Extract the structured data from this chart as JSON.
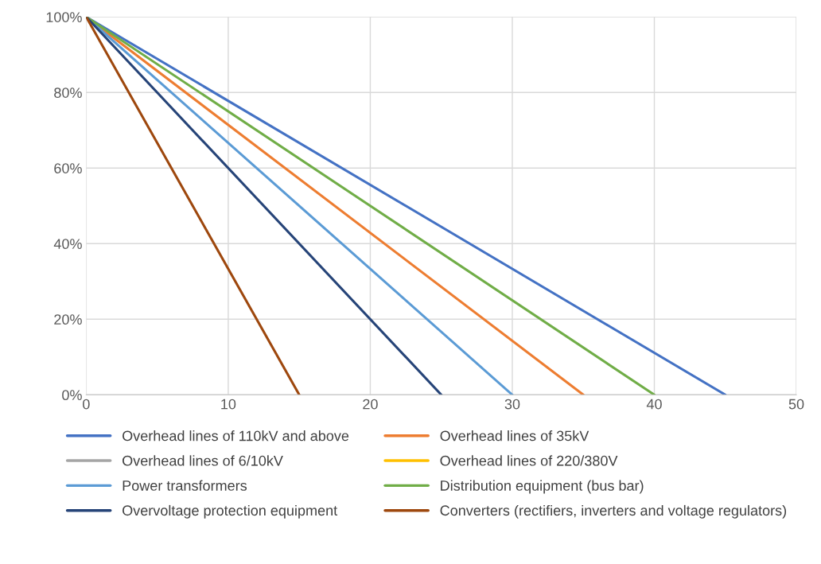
{
  "chart_data": {
    "type": "line",
    "xlim": [
      0,
      50
    ],
    "xticks": [
      0,
      10,
      20,
      30,
      40,
      50
    ],
    "ylim": [
      0,
      100
    ],
    "yticks": [
      {
        "value": 0,
        "label": "0%"
      },
      {
        "value": 20,
        "label": "20%"
      },
      {
        "value": 40,
        "label": "40%"
      },
      {
        "value": 60,
        "label": "60%"
      },
      {
        "value": 80,
        "label": "80%"
      },
      {
        "value": 100,
        "label": "100%"
      }
    ],
    "grid": true,
    "legend": "bottom",
    "marker": "none",
    "line_style": "solid",
    "series": [
      {
        "name": "Overhead lines of 110kV and above",
        "color": "#4472c4",
        "x": [
          0,
          45
        ],
        "values": [
          100,
          0
        ]
      },
      {
        "name": "Overhead lines of 35kV",
        "color": "#ed7d31",
        "x": [
          0,
          35
        ],
        "values": [
          100,
          0
        ]
      },
      {
        "name": "Overhead lines of 6/10kV",
        "color": "#a5a5a5",
        "values": [
          null
        ]
      },
      {
        "name": "Overhead lines of 220/380V",
        "color": "#ffc000",
        "values": [
          null
        ]
      },
      {
        "name": "Power transformers",
        "color": "#5b9bd5",
        "x": [
          0,
          30
        ],
        "values": [
          100,
          0
        ]
      },
      {
        "name": "Distribution equipment (bus bar)",
        "color": "#70ad47",
        "x": [
          0,
          40
        ],
        "values": [
          100,
          0
        ]
      },
      {
        "name": "Overvoltage protection equipment",
        "color": "#264478",
        "x": [
          0,
          25
        ],
        "values": [
          100,
          0
        ]
      },
      {
        "name": "Converters (rectifiers, inverters and voltage regulators)",
        "color": "#9e480e",
        "x": [
          0,
          15
        ],
        "values": [
          100,
          0
        ]
      }
    ]
  }
}
